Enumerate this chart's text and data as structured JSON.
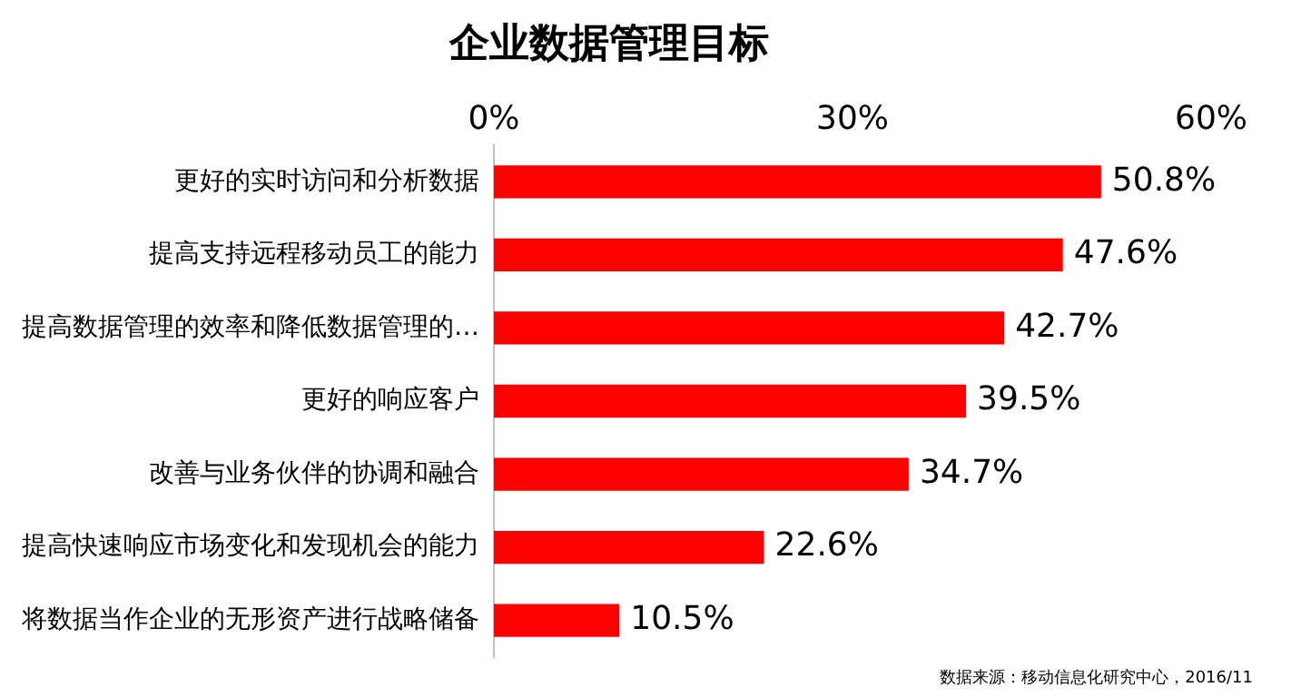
{
  "chart_data": {
    "type": "bar",
    "orientation": "horizontal",
    "title": "企业数据管理目标",
    "categories": [
      "更好的实时访问和分析数据",
      "提高支持远程移动员工的能力",
      "提高数据管理的效率和降低数据管理的…",
      "更好的响应客户",
      "改善与业务伙伴的协调和融合",
      "提高快速响应市场变化和发现机会的能力",
      "将数据当作企业的无形资产进行战略储备"
    ],
    "values": [
      50.8,
      47.6,
      42.7,
      39.5,
      34.7,
      22.6,
      10.5
    ],
    "value_labels": [
      "50.8%",
      "47.6%",
      "42.7%",
      "39.5%",
      "34.7%",
      "22.6%",
      "10.5%"
    ],
    "color": "#ff0000",
    "xlim": [
      0,
      60
    ],
    "xticks": [
      {
        "value": 0,
        "label": "0%"
      },
      {
        "value": 30,
        "label": "30%"
      },
      {
        "value": 60,
        "label": "60%"
      }
    ],
    "grid": false,
    "legend": false,
    "annotations": [
      "数据来源：移动信息化研究中心，2016/11"
    ]
  }
}
